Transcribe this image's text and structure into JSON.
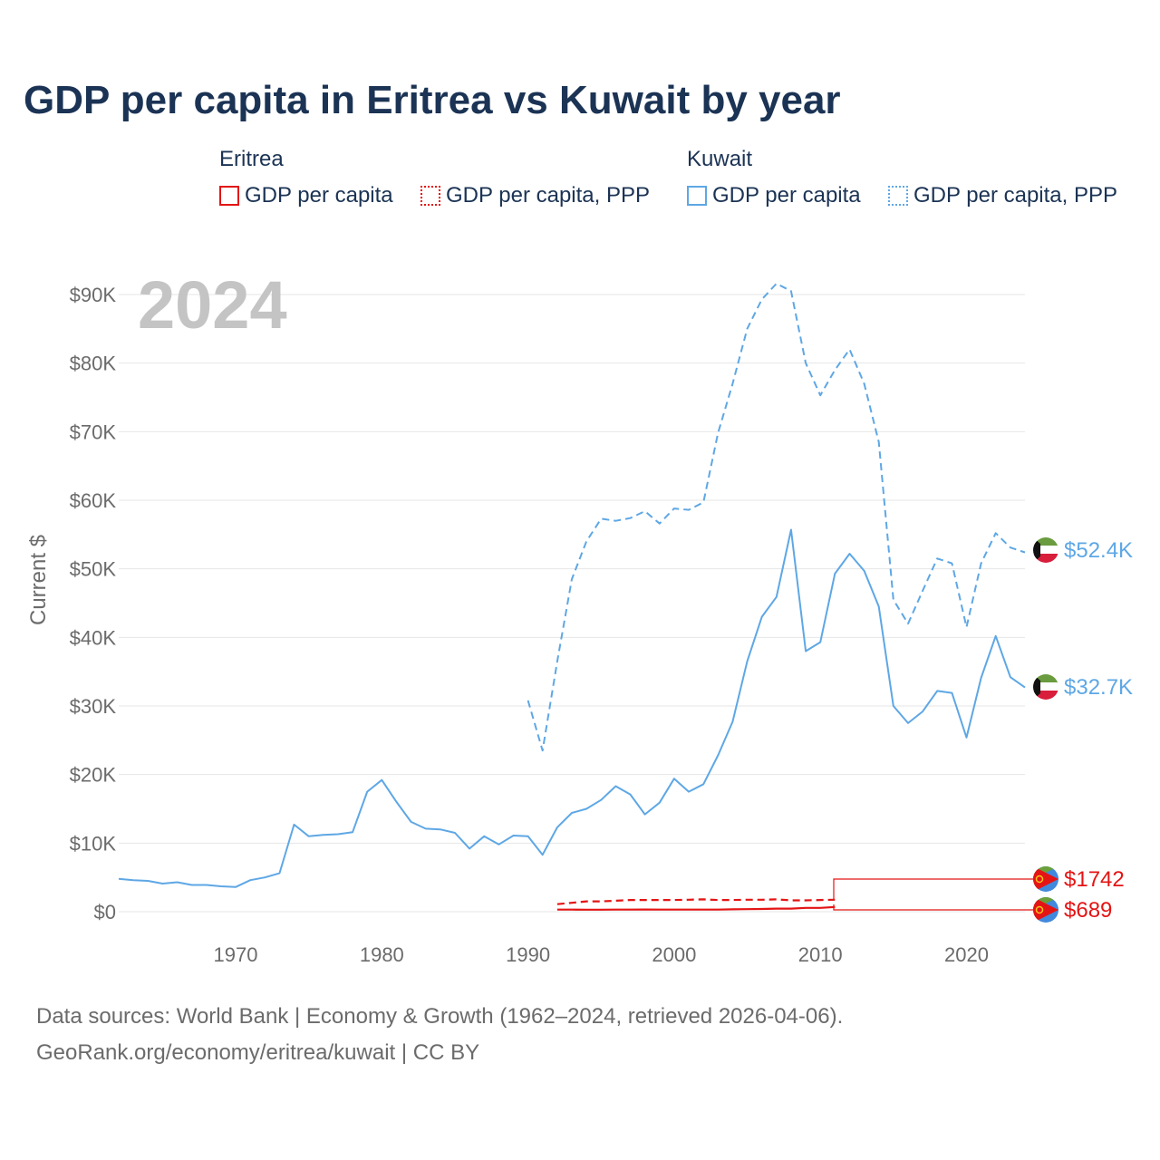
{
  "title": "GDP per capita in Eritrea vs Kuwait by year",
  "legend": {
    "groups": [
      {
        "name": "Eritrea",
        "color": "#e41414",
        "items": [
          {
            "label": "GDP per capita",
            "style": "solid"
          },
          {
            "label": "GDP per capita, PPP",
            "style": "dotted"
          }
        ]
      },
      {
        "name": "Kuwait",
        "color": "#5ea7e5",
        "items": [
          {
            "label": "GDP per capita",
            "style": "solid"
          },
          {
            "label": "GDP per capita, PPP",
            "style": "dotted"
          }
        ]
      }
    ]
  },
  "footer": {
    "source": "Data sources: World Bank | Economy & Growth (1962–2024, retrieved 2026-04-06).",
    "credit": "GeoRank.org/economy/eritrea/kuwait | CC BY"
  },
  "colors": {
    "eritrea": "#e41414",
    "kuwait": "#5ea7e5",
    "grid": "#e6e6e6",
    "axis_text": "#6b6b6b",
    "title": "#1b3354",
    "year_watermark": "#c4c4c4"
  },
  "chart_data": {
    "type": "line",
    "title": "GDP per capita in Eritrea vs Kuwait by year",
    "year_label": "2024",
    "xlabel": "",
    "ylabel": "Current $",
    "xlim": [
      1962,
      2024
    ],
    "ylim": [
      0,
      90000
    ],
    "x_ticks": [
      1970,
      1980,
      1990,
      2000,
      2010,
      2020
    ],
    "y_ticks": [
      {
        "value": 0,
        "label": "$0"
      },
      {
        "value": 10000,
        "label": "$10K"
      },
      {
        "value": 20000,
        "label": "$20K"
      },
      {
        "value": 30000,
        "label": "$30K"
      },
      {
        "value": 40000,
        "label": "$40K"
      },
      {
        "value": 50000,
        "label": "$50K"
      },
      {
        "value": 60000,
        "label": "$60K"
      },
      {
        "value": 70000,
        "label": "$70K"
      },
      {
        "value": 80000,
        "label": "$80K"
      },
      {
        "value": 90000,
        "label": "$90K"
      }
    ],
    "grid": true,
    "series": [
      {
        "name": "Kuwait GDP per capita, PPP",
        "country": "Kuwait",
        "style": "dashed",
        "color": "#5ea7e5",
        "end_label": "$52.4K",
        "points": [
          [
            1990,
            30800
          ],
          [
            1991,
            23500
          ],
          [
            1992,
            36500
          ],
          [
            1993,
            48500
          ],
          [
            1994,
            54000
          ],
          [
            1995,
            57300
          ],
          [
            1996,
            57000
          ],
          [
            1997,
            57400
          ],
          [
            1998,
            58400
          ],
          [
            1999,
            56600
          ],
          [
            2000,
            58800
          ],
          [
            2001,
            58600
          ],
          [
            2002,
            59700
          ],
          [
            2003,
            69800
          ],
          [
            2004,
            77000
          ],
          [
            2005,
            85000
          ],
          [
            2006,
            89300
          ],
          [
            2007,
            91600
          ],
          [
            2008,
            90500
          ],
          [
            2009,
            80000
          ],
          [
            2010,
            75300
          ],
          [
            2011,
            79000
          ],
          [
            2012,
            82000
          ],
          [
            2013,
            77000
          ],
          [
            2014,
            68500
          ],
          [
            2015,
            45500
          ],
          [
            2016,
            42000
          ],
          [
            2017,
            46800
          ],
          [
            2018,
            51500
          ],
          [
            2019,
            50800
          ],
          [
            2020,
            41500
          ],
          [
            2021,
            50800
          ],
          [
            2022,
            55200
          ],
          [
            2023,
            53100
          ],
          [
            2024,
            52400
          ]
        ]
      },
      {
        "name": "Kuwait GDP per capita",
        "country": "Kuwait",
        "style": "solid",
        "color": "#5ea7e5",
        "end_label": "$32.7K",
        "points": [
          [
            1962,
            4800
          ],
          [
            1963,
            4600
          ],
          [
            1964,
            4500
          ],
          [
            1965,
            4100
          ],
          [
            1966,
            4300
          ],
          [
            1967,
            3900
          ],
          [
            1968,
            3900
          ],
          [
            1969,
            3700
          ],
          [
            1970,
            3600
          ],
          [
            1971,
            4600
          ],
          [
            1972,
            5000
          ],
          [
            1973,
            5600
          ],
          [
            1974,
            12700
          ],
          [
            1975,
            11000
          ],
          [
            1976,
            11200
          ],
          [
            1977,
            11300
          ],
          [
            1978,
            11600
          ],
          [
            1979,
            17500
          ],
          [
            1980,
            19200
          ],
          [
            1981,
            16000
          ],
          [
            1982,
            13100
          ],
          [
            1983,
            12100
          ],
          [
            1984,
            12000
          ],
          [
            1985,
            11500
          ],
          [
            1986,
            9200
          ],
          [
            1987,
            11000
          ],
          [
            1988,
            9800
          ],
          [
            1989,
            11100
          ],
          [
            1990,
            11000
          ],
          [
            1991,
            8300
          ],
          [
            1992,
            12300
          ],
          [
            1993,
            14400
          ],
          [
            1994,
            15000
          ],
          [
            1995,
            16300
          ],
          [
            1996,
            18300
          ],
          [
            1997,
            17100
          ],
          [
            1998,
            14200
          ],
          [
            1999,
            15900
          ],
          [
            2000,
            19400
          ],
          [
            2001,
            17500
          ],
          [
            2002,
            18600
          ],
          [
            2003,
            22800
          ],
          [
            2004,
            27700
          ],
          [
            2005,
            36500
          ],
          [
            2006,
            43000
          ],
          [
            2007,
            45900
          ],
          [
            2008,
            55700
          ],
          [
            2009,
            38000
          ],
          [
            2010,
            39300
          ],
          [
            2011,
            49300
          ],
          [
            2012,
            52200
          ],
          [
            2013,
            49700
          ],
          [
            2014,
            44500
          ],
          [
            2015,
            30000
          ],
          [
            2016,
            27500
          ],
          [
            2017,
            29200
          ],
          [
            2018,
            32200
          ],
          [
            2019,
            31900
          ],
          [
            2020,
            25400
          ],
          [
            2021,
            34100
          ],
          [
            2022,
            40200
          ],
          [
            2023,
            34200
          ],
          [
            2024,
            32700
          ]
        ]
      },
      {
        "name": "Eritrea GDP per capita, PPP",
        "country": "Eritrea",
        "style": "dashed",
        "color": "#e41414",
        "end_label": "$1742",
        "points": [
          [
            1992,
            1100
          ],
          [
            1993,
            1300
          ],
          [
            1994,
            1500
          ],
          [
            1995,
            1500
          ],
          [
            1996,
            1600
          ],
          [
            1997,
            1700
          ],
          [
            1998,
            1700
          ],
          [
            1999,
            1700
          ],
          [
            2000,
            1700
          ],
          [
            2001,
            1750
          ],
          [
            2002,
            1800
          ],
          [
            2003,
            1700
          ],
          [
            2004,
            1700
          ],
          [
            2005,
            1750
          ],
          [
            2006,
            1750
          ],
          [
            2007,
            1800
          ],
          [
            2008,
            1650
          ],
          [
            2009,
            1650
          ],
          [
            2010,
            1700
          ],
          [
            2011,
            1742
          ]
        ]
      },
      {
        "name": "Eritrea GDP per capita",
        "country": "Eritrea",
        "style": "solid",
        "color": "#e41414",
        "end_label": "$689",
        "points": [
          [
            1992,
            300
          ],
          [
            1993,
            300
          ],
          [
            1994,
            290
          ],
          [
            1995,
            290
          ],
          [
            1996,
            300
          ],
          [
            1997,
            310
          ],
          [
            1998,
            320
          ],
          [
            1999,
            300
          ],
          [
            2000,
            300
          ],
          [
            2001,
            310
          ],
          [
            2002,
            300
          ],
          [
            2003,
            310
          ],
          [
            2004,
            350
          ],
          [
            2005,
            370
          ],
          [
            2006,
            400
          ],
          [
            2007,
            450
          ],
          [
            2008,
            450
          ],
          [
            2009,
            560
          ],
          [
            2010,
            550
          ],
          [
            2011,
            689
          ]
        ]
      }
    ]
  }
}
